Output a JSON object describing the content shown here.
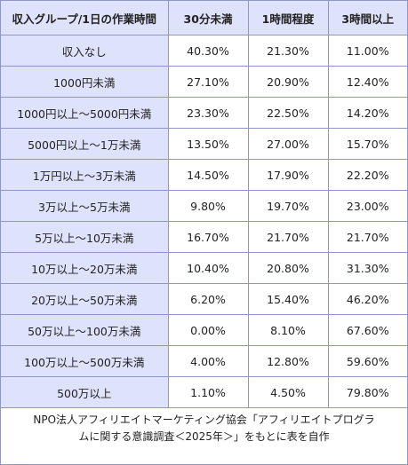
{
  "header": [
    "収入グループ/1日の作業時間",
    "30分未満",
    "1時間程度",
    "3時間以上"
  ],
  "rows": [
    {
      "label": "収入なし",
      "v": [
        "40.30%",
        "21.30%",
        "11.00%"
      ]
    },
    {
      "label": "1000円未満",
      "v": [
        "27.10%",
        "20.90%",
        "12.40%"
      ]
    },
    {
      "label": "1000円以上〜5000円未満",
      "v": [
        "23.30%",
        "22.50%",
        "14.20%"
      ]
    },
    {
      "label": "5000円以上〜1万未満",
      "v": [
        "13.50%",
        "27.00%",
        "15.70%"
      ]
    },
    {
      "label": "1万円以上〜3万未満",
      "v": [
        "14.50%",
        "17.90%",
        "22.20%"
      ]
    },
    {
      "label": "3万以上〜5万未満",
      "v": [
        "9.80%",
        "19.70%",
        "23.00%"
      ]
    },
    {
      "label": "5万以上〜10万未満",
      "v": [
        "16.70%",
        "21.70%",
        "21.70%"
      ]
    },
    {
      "label": "10万以上〜20万未満",
      "v": [
        "10.40%",
        "20.80%",
        "31.30%"
      ]
    },
    {
      "label": "20万以上〜50万未満",
      "v": [
        "6.20%",
        "15.40%",
        "46.20%"
      ]
    },
    {
      "label": "50万以上〜100万未満",
      "v": [
        "0.00%",
        "8.10%",
        "67.60%"
      ]
    },
    {
      "label": "100万以上〜500万未満",
      "v": [
        "4.00%",
        "12.80%",
        "59.60%"
      ]
    },
    {
      "label": "500万以上",
      "v": [
        "1.10%",
        "4.50%",
        "79.80%"
      ]
    }
  ],
  "source": {
    "line1": "NPO法人アフィリエイトマーケティング協会「アフィリエイトプログラ",
    "line2": "ムに関する意識調査＜2025年＞」をもとに表を自作"
  },
  "colors": {
    "header_bg": "#dfe2fb",
    "border": "#8f95c9"
  }
}
